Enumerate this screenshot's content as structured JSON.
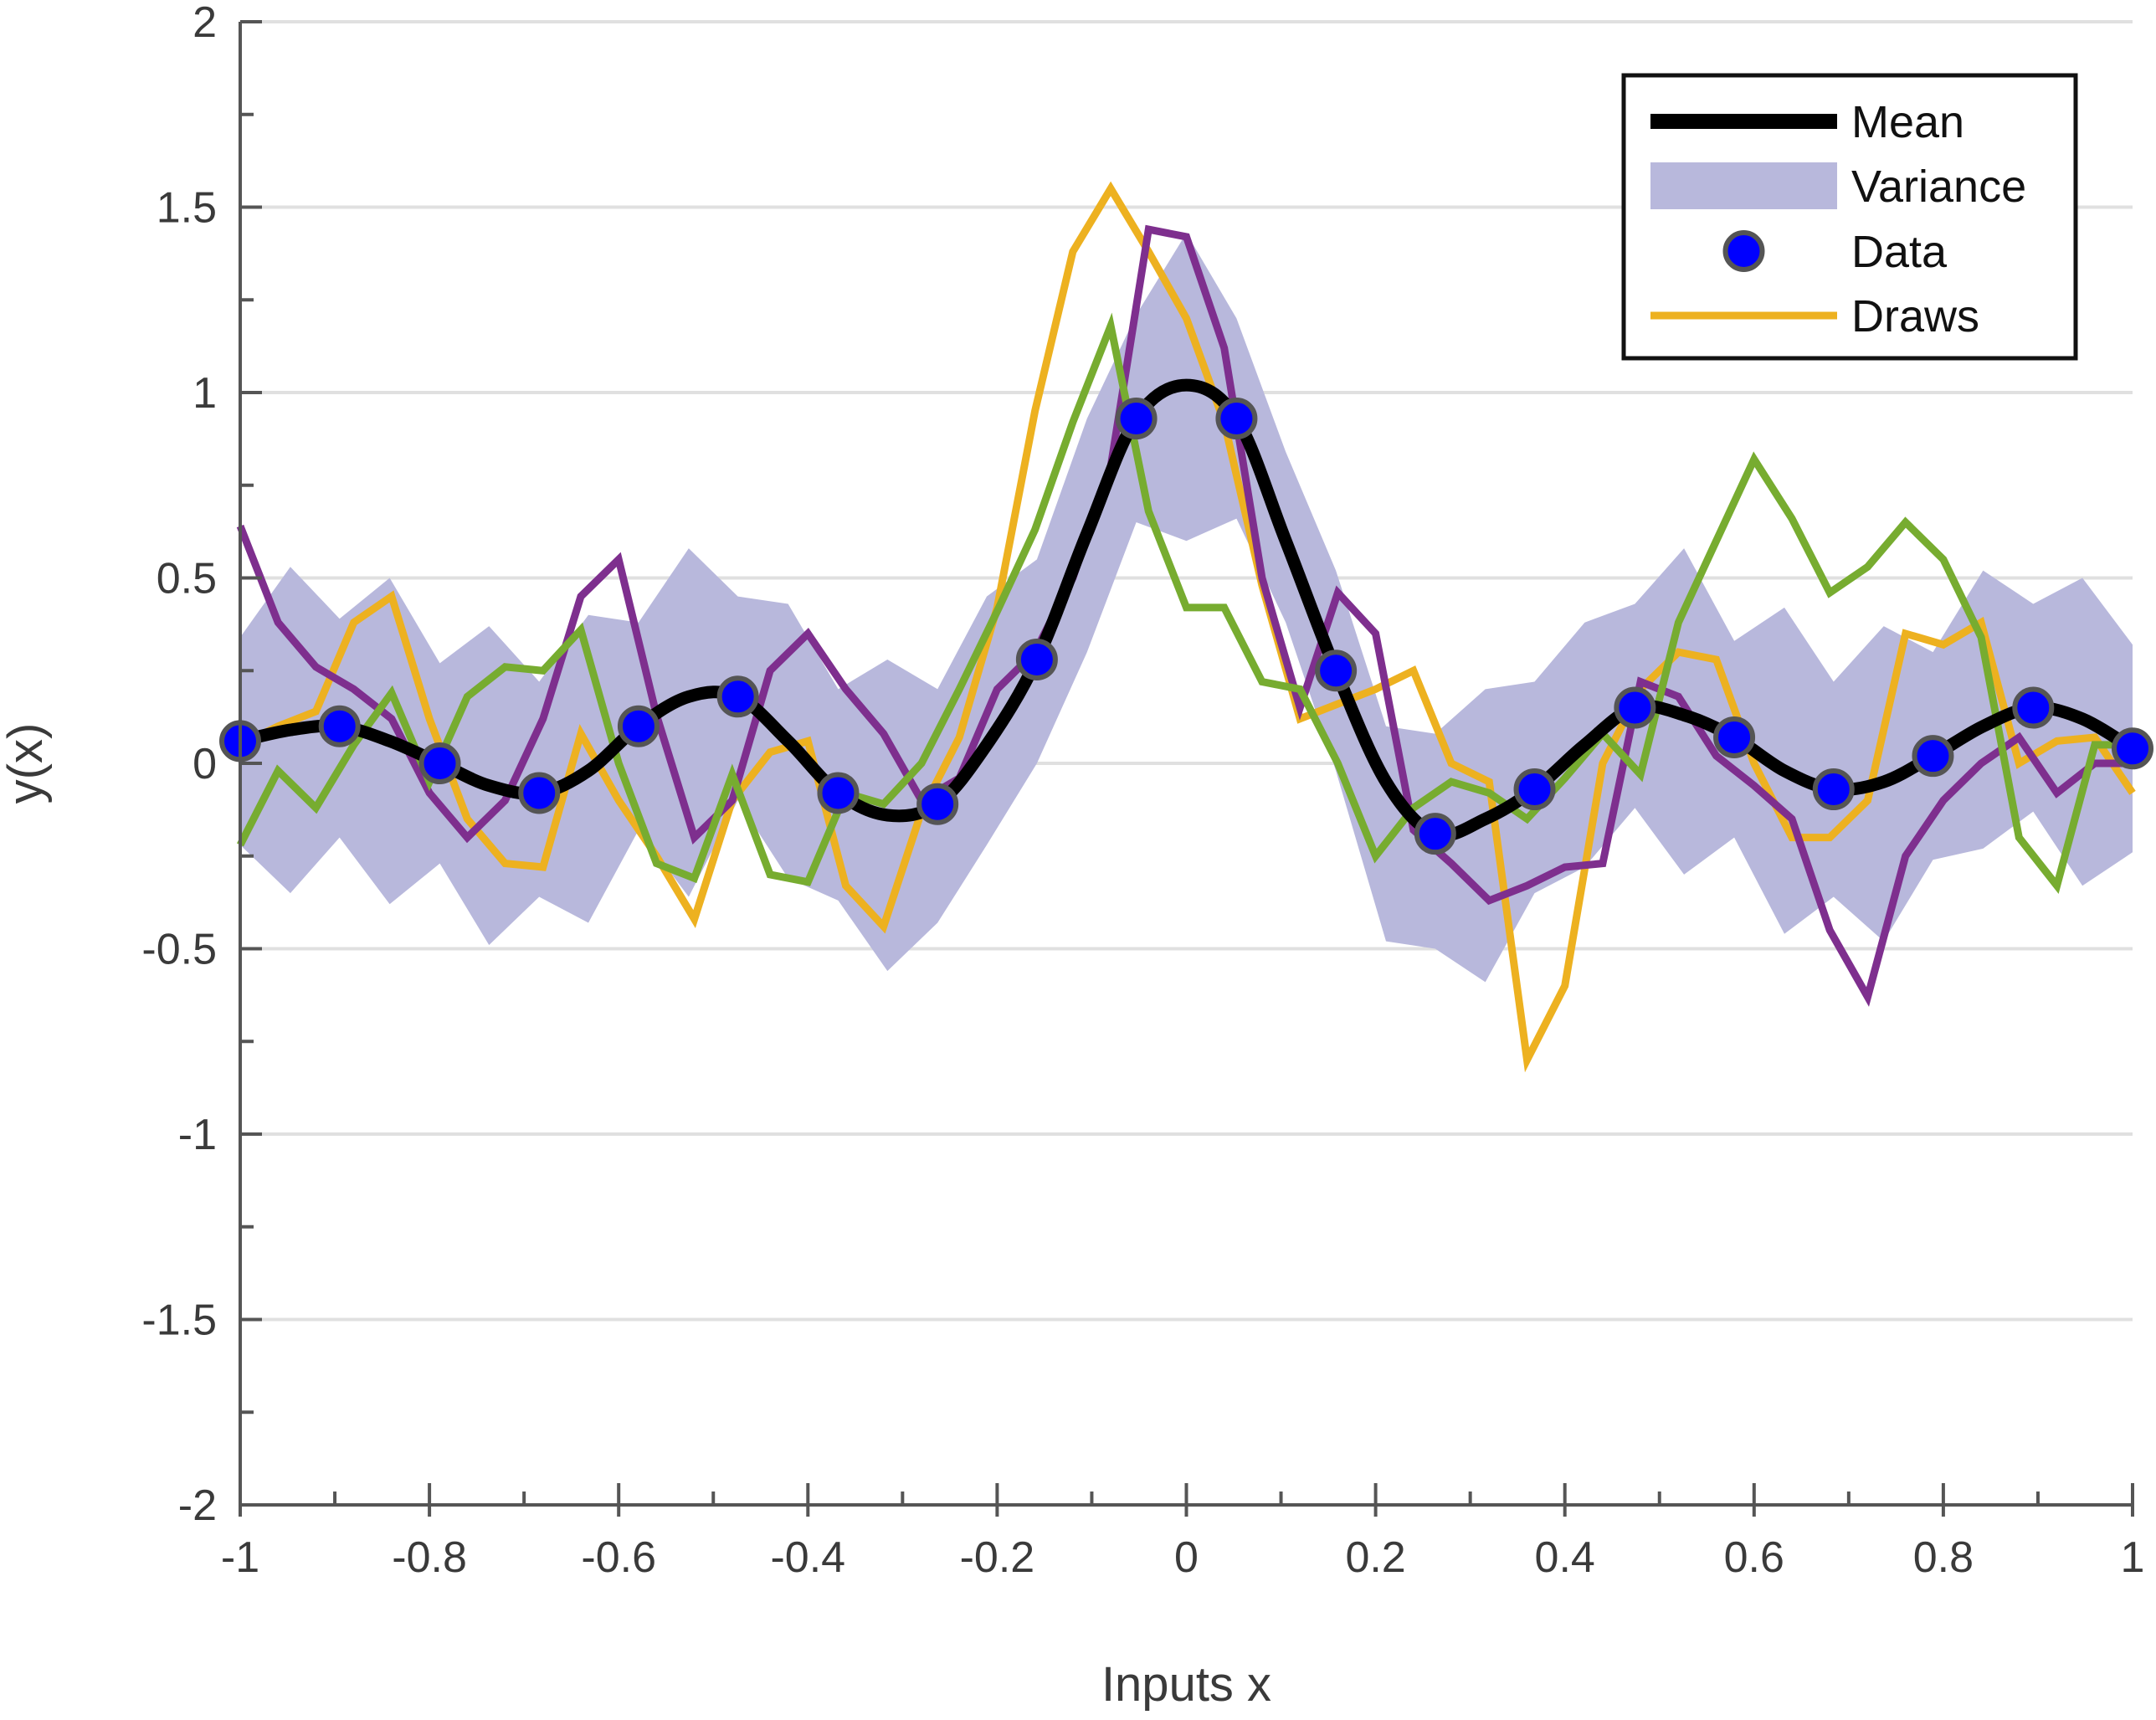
{
  "chart_data": {
    "type": "line",
    "title": "",
    "xlabel": "Inputs x",
    "ylabel": "y(x)",
    "xlim": [
      -1,
      1
    ],
    "ylim": [
      -2,
      2
    ],
    "grid": "horizontal",
    "legend_position": "top-right",
    "x_ticks": [
      -1,
      -0.8,
      -0.6,
      -0.4,
      -0.2,
      0,
      0.2,
      0.4,
      0.6,
      0.8,
      1
    ],
    "x_tick_labels": [
      "-1",
      "-0.8",
      "-0.6",
      "-0.4",
      "-0.2",
      "0",
      "0.2",
      "0.4",
      "0.6",
      "0.8",
      "1"
    ],
    "y_ticks": [
      -2,
      -1.5,
      -1,
      -0.5,
      0,
      0.5,
      1,
      1.5,
      2
    ],
    "y_tick_labels": [
      "-2",
      "-1.5",
      "-1",
      "-0.5",
      "0",
      "0.5",
      "1",
      "1.5",
      "2"
    ],
    "colors": {
      "mean": "#000000",
      "variance": "#b8b8dc",
      "data_fill": "#0000ff",
      "data_edge": "#555555",
      "draw_1": "#edb120",
      "draw_2": "#7e2f8e",
      "draw_3": "#77ac30",
      "grid": "#e0e0e0",
      "axis": "#555555"
    },
    "legend": [
      {
        "label": "Mean",
        "kind": "mean"
      },
      {
        "label": "Variance",
        "kind": "variance"
      },
      {
        "label": "Data",
        "kind": "data"
      },
      {
        "label": "Draws",
        "kind": "draws"
      }
    ],
    "data_points": {
      "x": [
        -1,
        -0.895,
        -0.789,
        -0.684,
        -0.579,
        -0.474,
        -0.368,
        -0.263,
        -0.158,
        -0.053,
        0.053,
        0.158,
        0.263,
        0.368,
        0.474,
        0.579,
        0.684,
        0.789,
        0.895,
        1
      ],
      "y": [
        0.06,
        0.1,
        0.0,
        -0.08,
        0.1,
        0.18,
        -0.08,
        -0.11,
        0.28,
        0.93,
        0.93,
        0.25,
        -0.19,
        -0.07,
        0.15,
        0.07,
        -0.07,
        0.02,
        0.15,
        0.04
      ]
    },
    "mean_curve": {
      "x": [
        -1,
        -0.947,
        -0.895,
        -0.842,
        -0.789,
        -0.737,
        -0.684,
        -0.632,
        -0.579,
        -0.526,
        -0.474,
        -0.421,
        -0.368,
        -0.316,
        -0.263,
        -0.211,
        -0.158,
        -0.105,
        -0.053,
        0.0,
        0.053,
        0.105,
        0.158,
        0.211,
        0.263,
        0.316,
        0.368,
        0.421,
        0.474,
        0.526,
        0.579,
        0.632,
        0.684,
        0.737,
        0.789,
        0.842,
        0.895,
        0.947,
        1
      ],
      "y": [
        0.06,
        0.09,
        0.1,
        0.06,
        0.0,
        -0.06,
        -0.08,
        -0.02,
        0.1,
        0.18,
        0.18,
        0.06,
        -0.08,
        -0.14,
        -0.11,
        0.05,
        0.28,
        0.62,
        0.93,
        1.02,
        0.93,
        0.6,
        0.25,
        -0.05,
        -0.19,
        -0.15,
        -0.07,
        0.05,
        0.15,
        0.13,
        0.07,
        -0.02,
        -0.07,
        -0.05,
        0.02,
        0.1,
        0.15,
        0.12,
        0.04
      ]
    },
    "variance_band": {
      "x": [
        -1,
        -0.947,
        -0.895,
        -0.842,
        -0.789,
        -0.737,
        -0.684,
        -0.632,
        -0.579,
        -0.526,
        -0.474,
        -0.421,
        -0.368,
        -0.316,
        -0.263,
        -0.211,
        -0.158,
        -0.105,
        -0.053,
        0.0,
        0.053,
        0.105,
        0.158,
        0.211,
        0.263,
        0.316,
        0.368,
        0.421,
        0.474,
        0.526,
        0.579,
        0.632,
        0.684,
        0.737,
        0.789,
        0.842,
        0.895,
        0.947,
        1
      ],
      "lower": [
        -0.22,
        -0.35,
        -0.2,
        -0.38,
        -0.27,
        -0.49,
        -0.36,
        -0.43,
        -0.18,
        -0.36,
        -0.1,
        -0.31,
        -0.37,
        -0.56,
        -0.43,
        -0.22,
        0.0,
        0.3,
        0.65,
        0.6,
        0.66,
        0.38,
        -0.02,
        -0.48,
        -0.5,
        -0.59,
        -0.35,
        -0.28,
        -0.12,
        -0.3,
        -0.2,
        -0.46,
        -0.36,
        -0.48,
        -0.26,
        -0.23,
        -0.13,
        -0.33,
        -0.24
      ],
      "upper": [
        0.34,
        0.53,
        0.39,
        0.5,
        0.27,
        0.37,
        0.22,
        0.4,
        0.38,
        0.58,
        0.45,
        0.43,
        0.2,
        0.28,
        0.2,
        0.45,
        0.55,
        0.93,
        1.21,
        1.43,
        1.2,
        0.84,
        0.52,
        0.1,
        0.08,
        0.2,
        0.22,
        0.38,
        0.43,
        0.58,
        0.33,
        0.42,
        0.22,
        0.37,
        0.3,
        0.52,
        0.43,
        0.5,
        0.32
      ]
    },
    "draws": [
      {
        "color_key": "draw_1",
        "x": [
          -1,
          -0.96,
          -0.92,
          -0.88,
          -0.84,
          -0.8,
          -0.76,
          -0.72,
          -0.68,
          -0.64,
          -0.6,
          -0.56,
          -0.52,
          -0.48,
          -0.44,
          -0.4,
          -0.36,
          -0.32,
          -0.28,
          -0.24,
          -0.2,
          -0.16,
          -0.12,
          -0.08,
          -0.04,
          0.0,
          0.04,
          0.08,
          0.12,
          0.16,
          0.2,
          0.24,
          0.28,
          0.32,
          0.36,
          0.4,
          0.44,
          0.48,
          0.52,
          0.56,
          0.6,
          0.64,
          0.68,
          0.72,
          0.76,
          0.8,
          0.84,
          0.88,
          0.92,
          0.96,
          1
        ],
        "y": [
          0.05,
          0.1,
          0.14,
          0.38,
          0.45,
          0.12,
          -0.15,
          -0.27,
          -0.28,
          0.08,
          -0.1,
          -0.25,
          -0.42,
          -0.1,
          0.03,
          0.06,
          -0.33,
          -0.44,
          -0.13,
          0.07,
          0.42,
          0.95,
          1.38,
          1.55,
          1.38,
          1.2,
          0.92,
          0.48,
          0.12,
          0.16,
          0.2,
          0.25,
          0.0,
          -0.05,
          -0.8,
          -0.6,
          0.0,
          0.2,
          0.3,
          0.28,
          0.0,
          -0.2,
          -0.2,
          -0.1,
          0.35,
          0.32,
          0.38,
          0.0,
          0.06,
          0.07,
          -0.08
        ]
      },
      {
        "color_key": "draw_2",
        "x": [
          -1,
          -0.96,
          -0.92,
          -0.88,
          -0.84,
          -0.8,
          -0.76,
          -0.72,
          -0.68,
          -0.64,
          -0.6,
          -0.56,
          -0.52,
          -0.48,
          -0.44,
          -0.4,
          -0.36,
          -0.32,
          -0.28,
          -0.24,
          -0.2,
          -0.16,
          -0.12,
          -0.08,
          -0.04,
          0.0,
          0.04,
          0.08,
          0.12,
          0.16,
          0.2,
          0.24,
          0.28,
          0.32,
          0.36,
          0.4,
          0.44,
          0.48,
          0.52,
          0.56,
          0.6,
          0.64,
          0.68,
          0.72,
          0.76,
          0.8,
          0.84,
          0.88,
          0.92,
          0.96,
          1
        ],
        "y": [
          0.64,
          0.38,
          0.26,
          0.2,
          0.12,
          -0.08,
          -0.2,
          -0.1,
          0.12,
          0.45,
          0.55,
          0.13,
          -0.2,
          -0.1,
          0.25,
          0.35,
          0.2,
          0.08,
          -0.1,
          -0.04,
          0.2,
          0.3,
          0.5,
          0.8,
          1.44,
          1.42,
          1.12,
          0.5,
          0.15,
          0.46,
          0.35,
          -0.18,
          -0.27,
          -0.37,
          -0.33,
          -0.28,
          -0.27,
          0.22,
          0.18,
          0.02,
          -0.06,
          -0.15,
          -0.45,
          -0.63,
          -0.25,
          -0.1,
          0.0,
          0.07,
          -0.08,
          0.0,
          0.0
        ]
      },
      {
        "color_key": "draw_3",
        "x": [
          -1,
          -0.96,
          -0.92,
          -0.88,
          -0.84,
          -0.8,
          -0.76,
          -0.72,
          -0.68,
          -0.64,
          -0.6,
          -0.56,
          -0.52,
          -0.48,
          -0.44,
          -0.4,
          -0.36,
          -0.32,
          -0.28,
          -0.24,
          -0.2,
          -0.16,
          -0.12,
          -0.08,
          -0.04,
          0.0,
          0.04,
          0.08,
          0.12,
          0.16,
          0.2,
          0.24,
          0.28,
          0.32,
          0.36,
          0.4,
          0.44,
          0.48,
          0.52,
          0.56,
          0.6,
          0.64,
          0.68,
          0.72,
          0.76,
          0.8,
          0.84,
          0.88,
          0.92,
          0.96,
          1
        ],
        "y": [
          -0.22,
          -0.02,
          -0.12,
          0.05,
          0.19,
          -0.05,
          0.18,
          0.26,
          0.25,
          0.36,
          0.0,
          -0.27,
          -0.31,
          -0.03,
          -0.3,
          -0.32,
          -0.08,
          -0.11,
          0.0,
          0.2,
          0.41,
          0.63,
          0.92,
          1.18,
          0.68,
          0.42,
          0.42,
          0.22,
          0.2,
          0.0,
          -0.25,
          -0.12,
          -0.05,
          -0.08,
          -0.15,
          -0.04,
          0.08,
          -0.03,
          0.38,
          0.6,
          0.82,
          0.66,
          0.46,
          0.53,
          0.65,
          0.55,
          0.34,
          -0.2,
          -0.33,
          0.05,
          0.05
        ]
      }
    ]
  }
}
